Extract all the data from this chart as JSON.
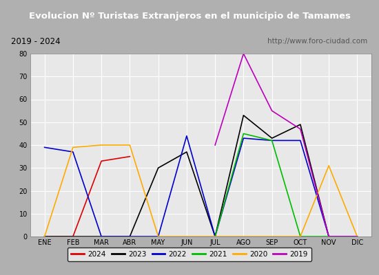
{
  "title": "Evolucion Nº Turistas Extranjeros en el municipio de Tamames",
  "subtitle_left": "2019 - 2024",
  "subtitle_right": "http://www.foro-ciudad.com",
  "months": [
    "ENE",
    "FEB",
    "MAR",
    "ABR",
    "MAY",
    "JUN",
    "JUL",
    "AGO",
    "SEP",
    "OCT",
    "NOV",
    "DIC"
  ],
  "ylim": [
    0,
    80
  ],
  "yticks": [
    0,
    10,
    20,
    30,
    40,
    50,
    60,
    70,
    80
  ],
  "series": {
    "2024": {
      "color": "#dd0000",
      "data": [
        0,
        0,
        33,
        35,
        null,
        null,
        null,
        null,
        null,
        null,
        null,
        null
      ]
    },
    "2023": {
      "color": "#000000",
      "data": [
        0,
        0,
        0,
        0,
        30,
        37,
        0,
        53,
        43,
        49,
        0,
        0
      ]
    },
    "2022": {
      "color": "#0000cc",
      "data": [
        39,
        37,
        0,
        0,
        0,
        44,
        0,
        43,
        42,
        42,
        0,
        0
      ]
    },
    "2021": {
      "color": "#00bb00",
      "data": [
        null,
        null,
        null,
        null,
        null,
        null,
        0,
        45,
        42,
        0,
        0,
        null
      ]
    },
    "2020": {
      "color": "#ffaa00",
      "data": [
        0,
        39,
        40,
        40,
        0,
        0,
        0,
        0,
        0,
        0,
        31,
        0
      ]
    },
    "2019": {
      "color": "#bb00bb",
      "data": [
        null,
        null,
        null,
        null,
        null,
        null,
        40,
        80,
        55,
        47,
        0,
        0
      ]
    }
  },
  "title_bg_color": "#4472c4",
  "title_text_color": "#ffffff",
  "subtitle_bg_color": "#d4d4d4",
  "plot_bg_color": "#e8e8e8",
  "grid_color": "#ffffff",
  "outer_bg_color": "#b0b0b0",
  "legend_order": [
    "2024",
    "2023",
    "2022",
    "2021",
    "2020",
    "2019"
  ]
}
